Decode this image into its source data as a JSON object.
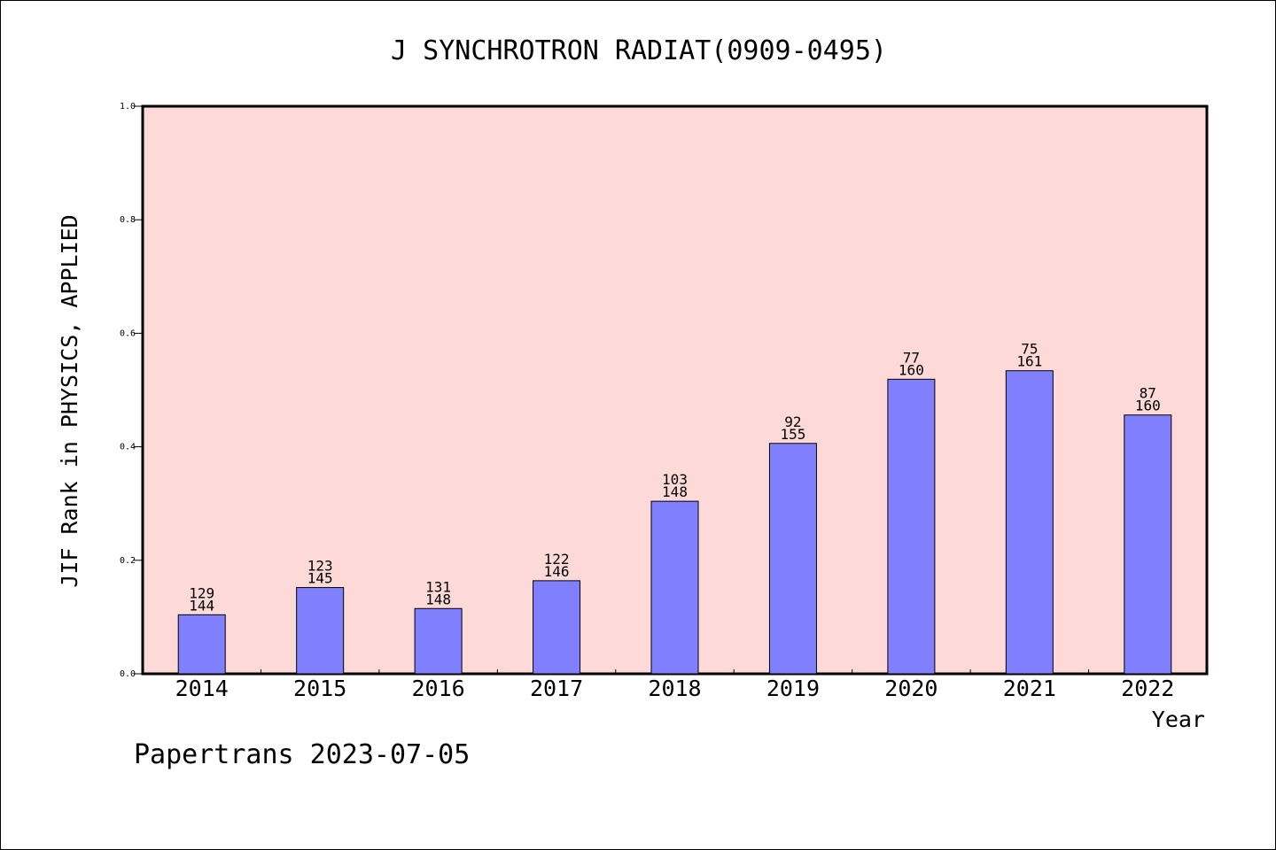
{
  "chart_data": {
    "type": "bar",
    "title": "J SYNCHROTRON RADIAT(0909-0495)",
    "xlabel": "Year",
    "ylabel": "JIF Rank in PHYSICS, APPLIED",
    "ylim": [
      0.0,
      1.0
    ],
    "yticks": [
      "0.0",
      "0.2",
      "0.4",
      "0.6",
      "0.8",
      "1.0"
    ],
    "categories": [
      "2014",
      "2015",
      "2016",
      "2017",
      "2018",
      "2019",
      "2020",
      "2021",
      "2022"
    ],
    "values": [
      0.104,
      0.152,
      0.115,
      0.164,
      0.304,
      0.406,
      0.519,
      0.534,
      0.456
    ],
    "rank": [
      "129",
      "123",
      "131",
      "122",
      "103",
      "92",
      "77",
      "75",
      "87"
    ],
    "total": [
      "144",
      "145",
      "148",
      "146",
      "148",
      "155",
      "160",
      "161",
      "160"
    ],
    "grid": false,
    "colors": {
      "plot_background": "#fddad7",
      "bar_fill": "#8080ff",
      "bar_stroke": "#000000"
    }
  },
  "footer": "Papertrans 2023-07-05"
}
